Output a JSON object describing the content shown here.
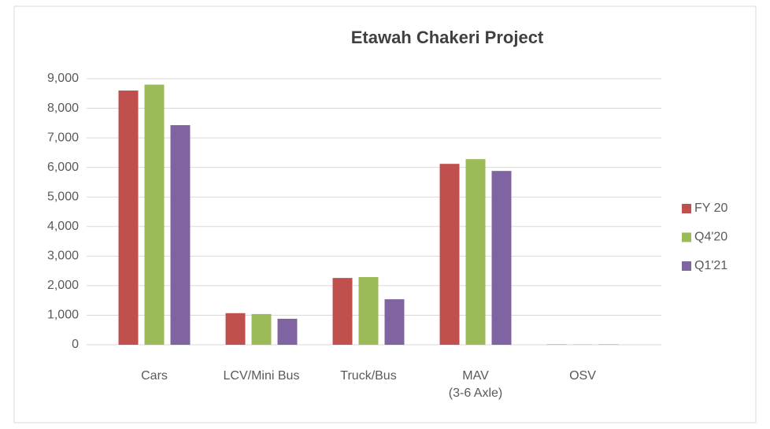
{
  "chart_data": {
    "type": "bar",
    "title": "Etawah Chakeri Project",
    "categories": [
      "Cars",
      "LCV/Mini Bus",
      "Truck/Bus",
      [
        "MAV",
        "(3-6 Axle)"
      ],
      "OSV"
    ],
    "series": [
      {
        "name": "FY 20",
        "color": "#c0504d",
        "values": [
          8600,
          1070,
          2260,
          6120,
          10
        ]
      },
      {
        "name": "Q4'20",
        "color": "#9bbb59",
        "values": [
          8800,
          1040,
          2290,
          6280,
          10
        ]
      },
      {
        "name": "Q1'21",
        "color": "#8064a2",
        "values": [
          7430,
          880,
          1540,
          5880,
          10
        ]
      }
    ],
    "ylim": [
      0,
      9000
    ],
    "yticks": [
      {
        "value": 0,
        "label": "0"
      },
      {
        "value": 1000,
        "label": "1,000"
      },
      {
        "value": 2000,
        "label": "2,000"
      },
      {
        "value": 3000,
        "label": "3,000"
      },
      {
        "value": 4000,
        "label": "4,000"
      },
      {
        "value": 5000,
        "label": "5,000"
      },
      {
        "value": 6000,
        "label": "6,000"
      },
      {
        "value": 7000,
        "label": "7,000"
      },
      {
        "value": 8000,
        "label": "8,000"
      },
      {
        "value": 9000,
        "label": "9,000"
      }
    ],
    "grid": true,
    "legend": "right"
  }
}
